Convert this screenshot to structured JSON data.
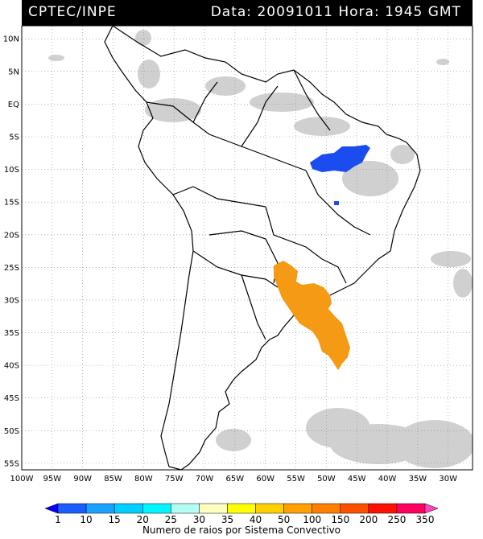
{
  "header": {
    "agency": "CPTEC/INPE",
    "datetime": "Data: 20091011 Hora: 1945 GMT"
  },
  "map": {
    "lon_range": [
      -100,
      -26
    ],
    "lat_range": [
      -56,
      12
    ],
    "lon_ticks": [
      "100W",
      "95W",
      "90W",
      "85W",
      "80W",
      "75W",
      "70W",
      "65W",
      "60W",
      "55W",
      "50W",
      "45W",
      "40W",
      "35W",
      "30W"
    ],
    "lat_ticks": [
      "10N",
      "5N",
      "EQ",
      "5S",
      "10S",
      "15S",
      "20S",
      "25S",
      "30S",
      "35S",
      "40S",
      "45S",
      "50S",
      "55S"
    ],
    "colors": {
      "land_outline": "#000000",
      "cloud": "#c8c8c8",
      "grid": "#888888",
      "blue_system": "#1a4cf0",
      "orange_system": "#f49a14"
    }
  },
  "legend": {
    "title": "Numero de raios por Sistema Convectivo",
    "labels": [
      "1",
      "10",
      "15",
      "20",
      "25",
      "30",
      "35",
      "40",
      "50",
      "100",
      "150",
      "200",
      "250",
      "350"
    ],
    "colors": [
      "#0000ff",
      "#1a5cff",
      "#1aa0ff",
      "#00d0ff",
      "#00f5ff",
      "#b4fff4",
      "#ffffc0",
      "#ffff00",
      "#ffd000",
      "#ffa000",
      "#ff8000",
      "#ff5000",
      "#ff1000",
      "#ff0060",
      "#ff40c0"
    ]
  }
}
